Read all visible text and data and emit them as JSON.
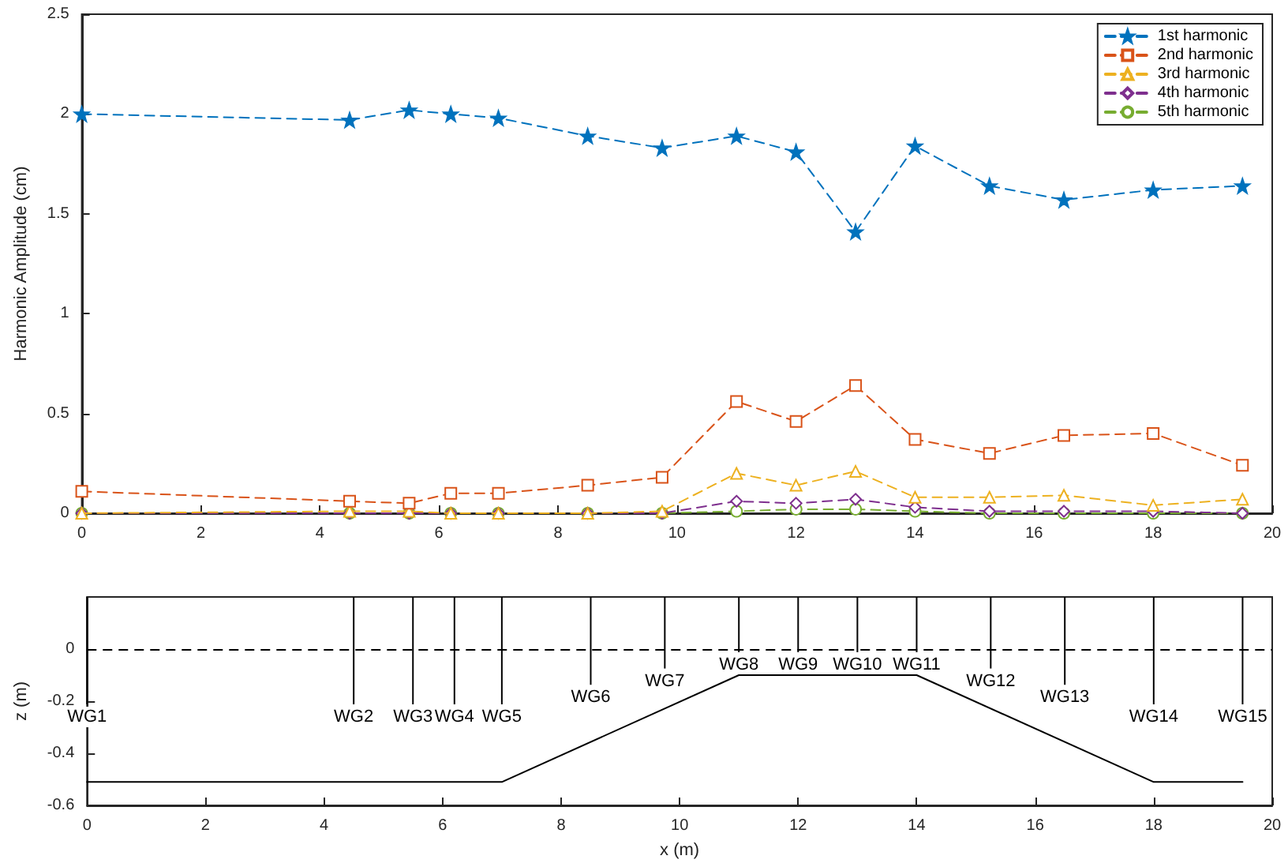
{
  "chart_data": [
    {
      "type": "line",
      "ylabel": "Harmonic Amplitude (cm)",
      "x": [
        0,
        4.5,
        5.5,
        6.2,
        7,
        8.5,
        9.75,
        11,
        12,
        13,
        14,
        15.25,
        16.5,
        18,
        19.5
      ],
      "series": [
        {
          "name": "1st harmonic",
          "color": "#0072bd",
          "marker": "star",
          "values": [
            2.0,
            1.97,
            2.02,
            2.0,
            1.98,
            1.89,
            1.83,
            1.89,
            1.81,
            1.41,
            1.84,
            1.64,
            1.57,
            1.62,
            1.64
          ]
        },
        {
          "name": "2nd harmonic",
          "color": "#d95319",
          "marker": "square",
          "values": [
            0.11,
            0.06,
            0.05,
            0.1,
            0.1,
            0.14,
            0.18,
            0.56,
            0.46,
            0.64,
            0.37,
            0.3,
            0.39,
            0.4,
            0.24
          ]
        },
        {
          "name": "3rd harmonic",
          "color": "#edb120",
          "marker": "triangle",
          "values": [
            0.0,
            0.01,
            0.01,
            0.0,
            0.0,
            0.0,
            0.01,
            0.2,
            0.14,
            0.21,
            0.08,
            0.08,
            0.09,
            0.04,
            0.07
          ]
        },
        {
          "name": "4th harmonic",
          "color": "#7e2f8e",
          "marker": "diamond",
          "values": [
            0.0,
            0.0,
            0.0,
            0.0,
            0.0,
            0.0,
            0.0,
            0.06,
            0.05,
            0.07,
            0.03,
            0.01,
            0.01,
            0.01,
            0.0
          ]
        },
        {
          "name": "5th harmonic",
          "color": "#77ac30",
          "marker": "circle",
          "values": [
            0.0,
            0.0,
            0.0,
            0.0,
            0.0,
            0.0,
            0.0,
            0.01,
            0.02,
            0.02,
            0.01,
            0.0,
            0.0,
            0.0,
            0.0
          ]
        }
      ],
      "line_style": "dashed",
      "xlim": [
        0,
        20
      ],
      "xticks": [
        0,
        2,
        4,
        6,
        8,
        10,
        12,
        14,
        16,
        18,
        20
      ],
      "ylim": [
        0,
        2.5
      ],
      "yticks": [
        0,
        0.5,
        1,
        1.5,
        2,
        2.5
      ],
      "grid": false,
      "legend": "top right"
    },
    {
      "type": "line",
      "xlabel": "x (m)",
      "ylabel": "z (m)",
      "series": [
        {
          "color": "#000000",
          "x": [
            0,
            7,
            11,
            14,
            18,
            19.5
          ],
          "values": [
            -0.51,
            -0.51,
            -0.1,
            -0.1,
            -0.51,
            -0.51
          ]
        }
      ],
      "line_style": "solid",
      "marker": "none",
      "xlim": [
        0,
        20
      ],
      "xticks": [
        0,
        2,
        4,
        6,
        8,
        10,
        12,
        14,
        16,
        18,
        20
      ],
      "ylim": [
        -0.6,
        0.2
      ],
      "yticks": [
        -0.6,
        -0.4,
        -0.2,
        0
      ],
      "grid": false,
      "legend": false,
      "ref_lines": [
        {
          "axis": "y",
          "value": 0,
          "color": "#000000",
          "line_style": "dashed"
        },
        {
          "axis": "x",
          "value": 0,
          "label": "WG1",
          "color": "#000000",
          "line_style": "solid"
        },
        {
          "axis": "x",
          "value": 4.5,
          "label": "WG2",
          "color": "#000000",
          "line_style": "solid"
        },
        {
          "axis": "x",
          "value": 5.5,
          "label": "WG3",
          "color": "#000000",
          "line_style": "solid"
        },
        {
          "axis": "x",
          "value": 6.2,
          "label": "WG4",
          "color": "#000000",
          "line_style": "solid"
        },
        {
          "axis": "x",
          "value": 7,
          "label": "WG5",
          "color": "#000000",
          "line_style": "solid"
        },
        {
          "axis": "x",
          "value": 8.5,
          "label": "WG6",
          "color": "#000000",
          "line_style": "solid"
        },
        {
          "axis": "x",
          "value": 9.75,
          "label": "WG7",
          "color": "#000000",
          "line_style": "solid"
        },
        {
          "axis": "x",
          "value": 11,
          "label": "WG8",
          "color": "#000000",
          "line_style": "solid"
        },
        {
          "axis": "x",
          "value": 12,
          "label": "WG9",
          "color": "#000000",
          "line_style": "solid"
        },
        {
          "axis": "x",
          "value": 13,
          "label": "WG10",
          "color": "#000000",
          "line_style": "solid"
        },
        {
          "axis": "x",
          "value": 14,
          "label": "WG11",
          "color": "#000000",
          "line_style": "solid"
        },
        {
          "axis": "x",
          "value": 15.25,
          "label": "WG12",
          "color": "#000000",
          "line_style": "solid"
        },
        {
          "axis": "x",
          "value": 16.5,
          "label": "WG13",
          "color": "#000000",
          "line_style": "solid"
        },
        {
          "axis": "x",
          "value": 18,
          "label": "WG14",
          "color": "#000000",
          "line_style": "solid"
        },
        {
          "axis": "x",
          "value": 19.5,
          "label": "WG15",
          "color": "#000000",
          "line_style": "solid"
        }
      ]
    }
  ]
}
